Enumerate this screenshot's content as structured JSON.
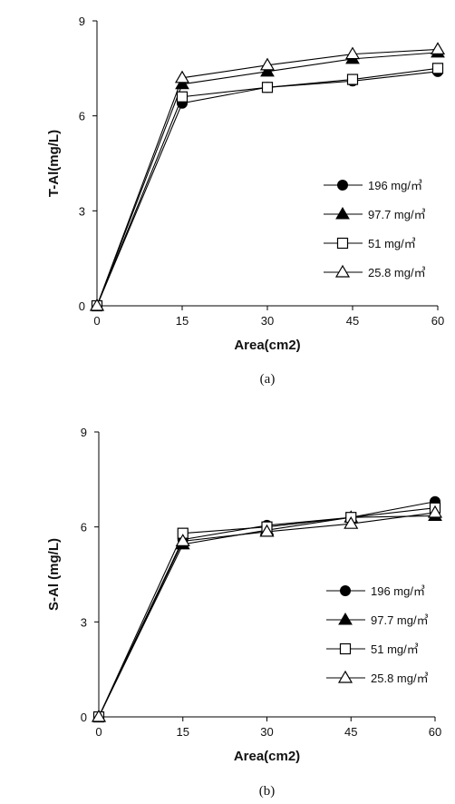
{
  "chart_data": [
    {
      "type": "line",
      "panel_label": "(a)",
      "xlabel": "Area(cm2)",
      "ylabel": "T-Al(mg/L)",
      "x": [
        0,
        15,
        30,
        45,
        60
      ],
      "xlim": [
        0,
        60
      ],
      "ylim": [
        0,
        9
      ],
      "xticks": [
        "0",
        "15",
        "30",
        "45",
        "60"
      ],
      "yticks": [
        "0",
        "3",
        "6",
        "9"
      ],
      "grid": false,
      "legend_position": "right",
      "series": [
        {
          "name": "196 mg/㎥",
          "marker": "filled-circle",
          "values": [
            0,
            6.4,
            6.9,
            7.1,
            7.4
          ]
        },
        {
          "name": "97.7 mg/㎥",
          "marker": "filled-triangle",
          "values": [
            0,
            7.0,
            7.4,
            7.8,
            8.0
          ]
        },
        {
          "name": "51 mg/㎥",
          "marker": "open-square",
          "values": [
            0,
            6.6,
            6.9,
            7.15,
            7.5
          ]
        },
        {
          "name": "25.8 mg/㎥",
          "marker": "open-triangle",
          "values": [
            0,
            7.2,
            7.6,
            7.95,
            8.1
          ]
        }
      ]
    },
    {
      "type": "line",
      "panel_label": "(b)",
      "xlabel": "Area(cm2)",
      "ylabel": "S-Al (mg/L)",
      "x": [
        0,
        15,
        30,
        45,
        60
      ],
      "xlim": [
        0,
        60
      ],
      "ylim": [
        0,
        9
      ],
      "xticks": [
        "0",
        "15",
        "30",
        "45",
        "60"
      ],
      "yticks": [
        "0",
        "3",
        "6",
        "9"
      ],
      "grid": false,
      "legend_position": "right",
      "series": [
        {
          "name": "196 mg/㎥",
          "marker": "filled-circle",
          "values": [
            0,
            5.6,
            6.05,
            6.3,
            6.8
          ]
        },
        {
          "name": "97.7 mg/㎥",
          "marker": "filled-triangle",
          "values": [
            0,
            5.45,
            5.9,
            6.3,
            6.35
          ]
        },
        {
          "name": "51 mg/㎥",
          "marker": "open-square",
          "values": [
            0,
            5.8,
            6.0,
            6.3,
            6.6
          ]
        },
        {
          "name": "25.8 mg/㎥",
          "marker": "open-triangle",
          "values": [
            0,
            5.55,
            5.85,
            6.1,
            6.45
          ]
        }
      ]
    }
  ]
}
